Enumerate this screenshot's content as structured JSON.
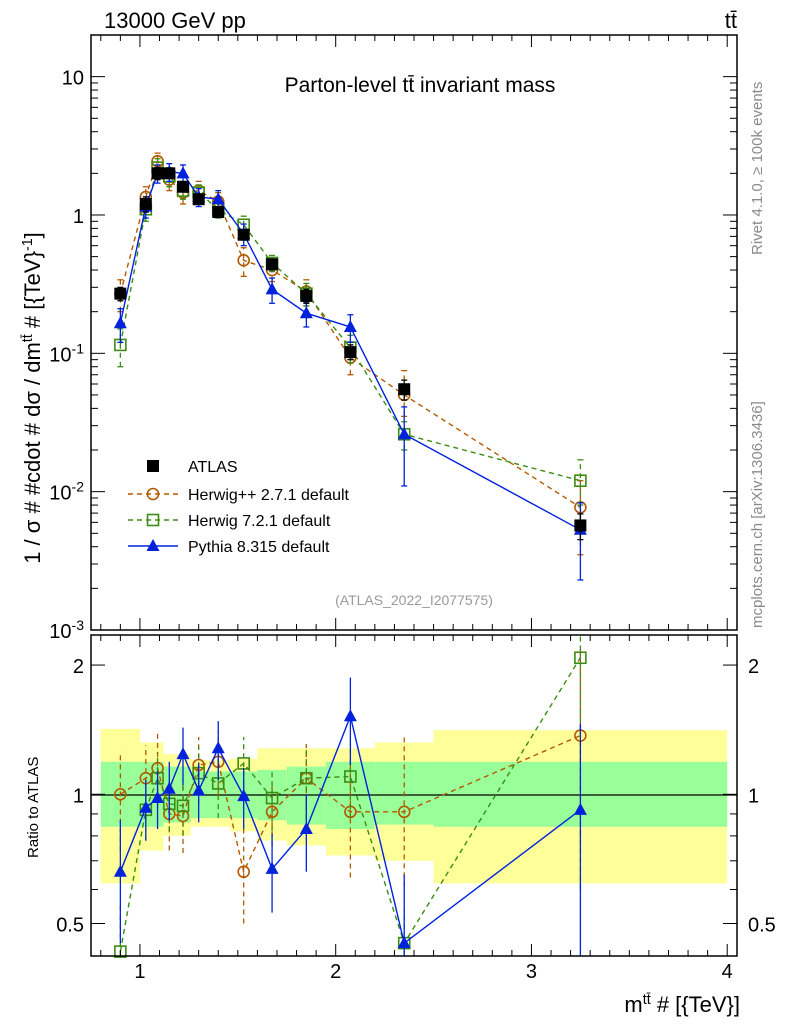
{
  "header": {
    "energy_label": "13000 GeV pp",
    "process_label": "tt̄"
  },
  "side_labels": {
    "rivet": "Rivet 4.1.0, ≥ 100k events",
    "mcplots": "mcplots.cern.ch [arXiv:1306.3436]"
  },
  "chart_data": {
    "type": "line",
    "title": "Parton-level tt̄ invariant mass",
    "analysis_id": "(ATLAS_2022_I2077575)",
    "xlabel": "mtt̄ # [{TeV}]",
    "ylabel_main": "1 / σ # #cdot # dσ / dmtt̄ # [{TeV}-1]",
    "ylabel_ratio": "Ratio to ATLAS",
    "xlim": [
      0.75,
      4.05
    ],
    "ylim_main": [
      0.001,
      20
    ],
    "ylim_ratio": [
      0.42,
      2.35
    ],
    "yscale_main": "log",
    "yscale_ratio": "log",
    "x_ticks": [
      "1",
      "2",
      "3",
      "4"
    ],
    "y_ticks_main": [
      "10",
      "1",
      "10^-1",
      "10^-2",
      "10^-3"
    ],
    "y_ticks_ratio": [
      "2",
      "1",
      "0.5"
    ],
    "legend_position": "bottom-left",
    "bins": [
      {
        "lo": 0.8,
        "hi": 1.0
      },
      {
        "lo": 1.0,
        "hi": 1.06
      },
      {
        "lo": 1.06,
        "hi": 1.12
      },
      {
        "lo": 1.12,
        "hi": 1.18
      },
      {
        "lo": 1.18,
        "hi": 1.26
      },
      {
        "lo": 1.26,
        "hi": 1.34
      },
      {
        "lo": 1.34,
        "hi": 1.46
      },
      {
        "lo": 1.46,
        "hi": 1.6
      },
      {
        "lo": 1.6,
        "hi": 1.75
      },
      {
        "lo": 1.75,
        "hi": 1.95
      },
      {
        "lo": 1.95,
        "hi": 2.2
      },
      {
        "lo": 2.2,
        "hi": 2.5
      },
      {
        "lo": 2.5,
        "hi": 4.0
      }
    ],
    "band_inner": [
      [
        0.84,
        1.19
      ],
      [
        0.84,
        1.19
      ],
      [
        0.84,
        1.19
      ],
      [
        0.86,
        1.16
      ],
      [
        0.86,
        1.16
      ],
      [
        0.88,
        1.13
      ],
      [
        0.88,
        1.13
      ],
      [
        0.88,
        1.13
      ],
      [
        0.87,
        1.14
      ],
      [
        0.85,
        1.16
      ],
      [
        0.83,
        1.19
      ],
      [
        0.85,
        1.19
      ],
      [
        0.84,
        1.19
      ]
    ],
    "band_outer": [
      [
        0.62,
        1.42
      ],
      [
        0.74,
        1.32
      ],
      [
        0.74,
        1.32
      ],
      [
        0.8,
        1.24
      ],
      [
        0.8,
        1.24
      ],
      [
        0.84,
        1.2
      ],
      [
        0.84,
        1.2
      ],
      [
        0.82,
        1.21
      ],
      [
        0.78,
        1.28
      ],
      [
        0.76,
        1.28
      ],
      [
        0.72,
        1.28
      ],
      [
        0.7,
        1.32
      ],
      [
        0.62,
        1.41
      ]
    ],
    "series": [
      {
        "name": "ATLAS",
        "color": "#000000",
        "marker": "square-filled",
        "dash": "none",
        "x": [
          0.9,
          1.03,
          1.09,
          1.15,
          1.22,
          1.3,
          1.4,
          1.53,
          1.675,
          1.85,
          2.075,
          2.35,
          3.25
        ],
        "y": [
          0.27,
          1.2,
          2.0,
          2.0,
          1.6,
          1.3,
          1.05,
          0.72,
          0.44,
          0.26,
          0.102,
          0.055,
          0.0057
        ],
        "err_lo": [
          0.24,
          1.05,
          1.8,
          1.85,
          1.48,
          1.2,
          0.98,
          0.66,
          0.4,
          0.23,
          0.09,
          0.046,
          0.0045
        ],
        "err_hi": [
          0.3,
          1.35,
          2.2,
          2.15,
          1.72,
          1.4,
          1.12,
          0.78,
          0.48,
          0.29,
          0.115,
          0.064,
          0.0069
        ],
        "ratio": [
          1,
          1,
          1,
          1,
          1,
          1,
          1,
          1,
          1,
          1,
          1,
          1,
          1
        ]
      },
      {
        "name": "Herwig++ 2.7.1 default",
        "color": "#b35a00",
        "marker": "circle-open",
        "dash": "dashed",
        "x": [
          0.9,
          1.03,
          1.09,
          1.15,
          1.22,
          1.3,
          1.4,
          1.53,
          1.675,
          1.85,
          2.075,
          2.35,
          3.25
        ],
        "y": [
          0.27,
          1.35,
          2.45,
          1.8,
          1.45,
          1.5,
          1.25,
          0.47,
          0.4,
          0.28,
          0.093,
          0.05,
          0.0077
        ],
        "err_lo": [
          0.2,
          1.05,
          2.1,
          1.5,
          1.2,
          1.3,
          1.05,
          0.36,
          0.33,
          0.22,
          0.07,
          0.035,
          0.0035
        ],
        "err_hi": [
          0.34,
          1.6,
          2.8,
          2.1,
          1.7,
          1.75,
          1.45,
          0.58,
          0.47,
          0.34,
          0.115,
          0.075,
          0.012
        ],
        "ratio": [
          1.0,
          1.09,
          1.15,
          0.9,
          0.89,
          1.17,
          1.19,
          0.66,
          0.91,
          1.09,
          0.91,
          0.91,
          1.37
        ],
        "ratio_lo": [
          0.74,
          0.88,
          0.96,
          0.74,
          0.73,
          1.0,
          0.99,
          0.5,
          0.76,
          0.87,
          0.64,
          0.61,
          0.6
        ],
        "ratio_hi": [
          1.26,
          1.3,
          1.4,
          1.06,
          1.05,
          1.36,
          1.4,
          0.83,
          1.07,
          1.31,
          1.18,
          1.38,
          2.2
        ]
      },
      {
        "name": "Herwig 7.2.1 default",
        "color": "#3c8c13",
        "marker": "square-open",
        "dash": "dashed",
        "x": [
          0.9,
          1.03,
          1.09,
          1.15,
          1.22,
          1.3,
          1.4,
          1.53,
          1.675,
          1.85,
          2.075,
          2.35,
          3.25
        ],
        "y": [
          0.115,
          1.1,
          2.2,
          1.9,
          1.5,
          1.45,
          1.1,
          0.85,
          0.45,
          0.27,
          0.11,
          0.026,
          0.012
        ],
        "err_lo": [
          0.08,
          0.9,
          1.85,
          1.6,
          1.3,
          1.25,
          0.95,
          0.72,
          0.39,
          0.22,
          0.085,
          0.02,
          0.008
        ],
        "err_hi": [
          0.15,
          1.3,
          2.55,
          2.2,
          1.7,
          1.65,
          1.25,
          0.98,
          0.51,
          0.32,
          0.135,
          0.032,
          0.017
        ],
        "ratio": [
          0.43,
          0.92,
          1.09,
          0.95,
          0.94,
          1.12,
          1.06,
          1.18,
          0.98,
          1.09,
          1.1,
          0.45,
          2.08
        ],
        "ratio_lo": [
          0.3,
          0.78,
          0.93,
          0.82,
          0.8,
          0.95,
          0.88,
          1.0,
          0.82,
          0.88,
          0.88,
          0.36,
          1.4
        ],
        "ratio_hi": [
          0.56,
          1.06,
          1.25,
          1.08,
          1.08,
          1.29,
          1.24,
          1.36,
          1.14,
          1.3,
          1.32,
          0.54,
          2.8
        ]
      },
      {
        "name": "Pythia 8.315 default",
        "color": "#0022dd",
        "marker": "triangle-filled",
        "dash": "solid",
        "x": [
          0.9,
          1.03,
          1.09,
          1.15,
          1.22,
          1.3,
          1.4,
          1.53,
          1.675,
          1.85,
          2.075,
          2.35,
          3.25
        ],
        "y": [
          0.165,
          1.15,
          2.0,
          2.05,
          2.0,
          1.35,
          1.3,
          0.73,
          0.29,
          0.195,
          0.155,
          0.026,
          0.0053
        ],
        "err_lo": [
          0.12,
          0.95,
          1.7,
          1.75,
          1.7,
          1.15,
          1.1,
          0.6,
          0.23,
          0.155,
          0.12,
          0.011,
          0.0023
        ],
        "err_hi": [
          0.21,
          1.35,
          2.3,
          2.35,
          2.3,
          1.55,
          1.5,
          0.86,
          0.35,
          0.235,
          0.19,
          0.041,
          0.0083
        ],
        "ratio": [
          0.66,
          0.93,
          0.98,
          1.03,
          1.24,
          1.02,
          1.28,
          0.99,
          0.67,
          0.83,
          1.52,
          0.45,
          0.92
        ],
        "ratio_lo": [
          0.45,
          0.78,
          0.83,
          0.87,
          1.05,
          0.86,
          1.08,
          0.83,
          0.53,
          0.66,
          1.17,
          0.25,
          0.38
        ],
        "ratio_hi": [
          0.87,
          1.08,
          1.13,
          1.19,
          1.43,
          1.18,
          1.48,
          1.15,
          0.81,
          1.0,
          1.87,
          0.65,
          1.46
        ]
      }
    ]
  }
}
